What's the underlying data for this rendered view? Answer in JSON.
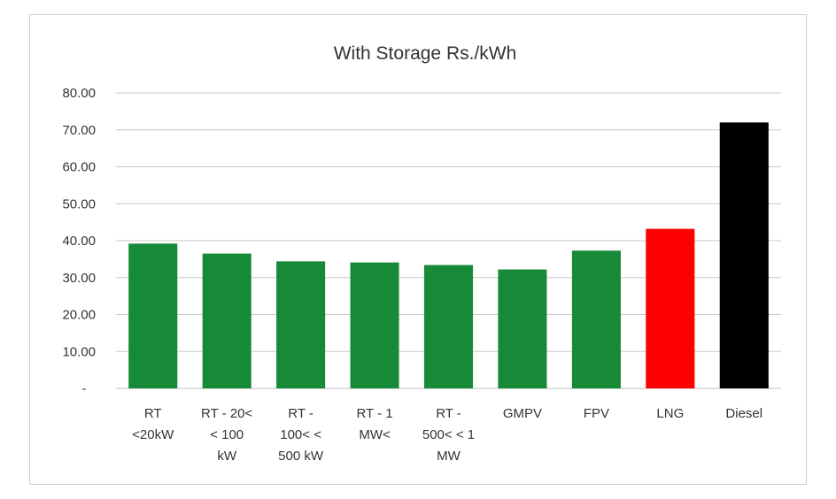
{
  "chart_data": {
    "type": "bar",
    "title": "With Storage Rs./kWh",
    "xlabel": "",
    "ylabel": "",
    "ylim": [
      0,
      80
    ],
    "y_ticks": [
      0,
      10,
      20,
      30,
      40,
      50,
      60,
      70,
      80
    ],
    "y_tick_labels": [
      "-",
      "10.00",
      "20.00",
      "30.00",
      "40.00",
      "50.00",
      "60.00",
      "70.00",
      "80.00"
    ],
    "grid": true,
    "legend": "none",
    "categories": [
      [
        "RT",
        "<20kW"
      ],
      [
        "RT - 20<",
        "< 100",
        "kW"
      ],
      [
        "RT -",
        "100< <",
        "500 kW"
      ],
      [
        "RT - 1",
        "MW<"
      ],
      [
        "RT -",
        "500< < 1",
        "MW"
      ],
      [
        "GMPV"
      ],
      [
        "FPV"
      ],
      [
        "LNG"
      ],
      [
        "Diesel"
      ]
    ],
    "values": [
      39.2,
      36.5,
      34.4,
      34.1,
      33.4,
      32.2,
      37.3,
      43.2,
      72.0
    ],
    "colors": [
      "#178A38",
      "#178A38",
      "#178A38",
      "#178A38",
      "#178A38",
      "#178A38",
      "#178A38",
      "#FF0000",
      "#000000"
    ],
    "gridline_color": "#c8c8c8",
    "axis_color": "#bfbfbf"
  }
}
